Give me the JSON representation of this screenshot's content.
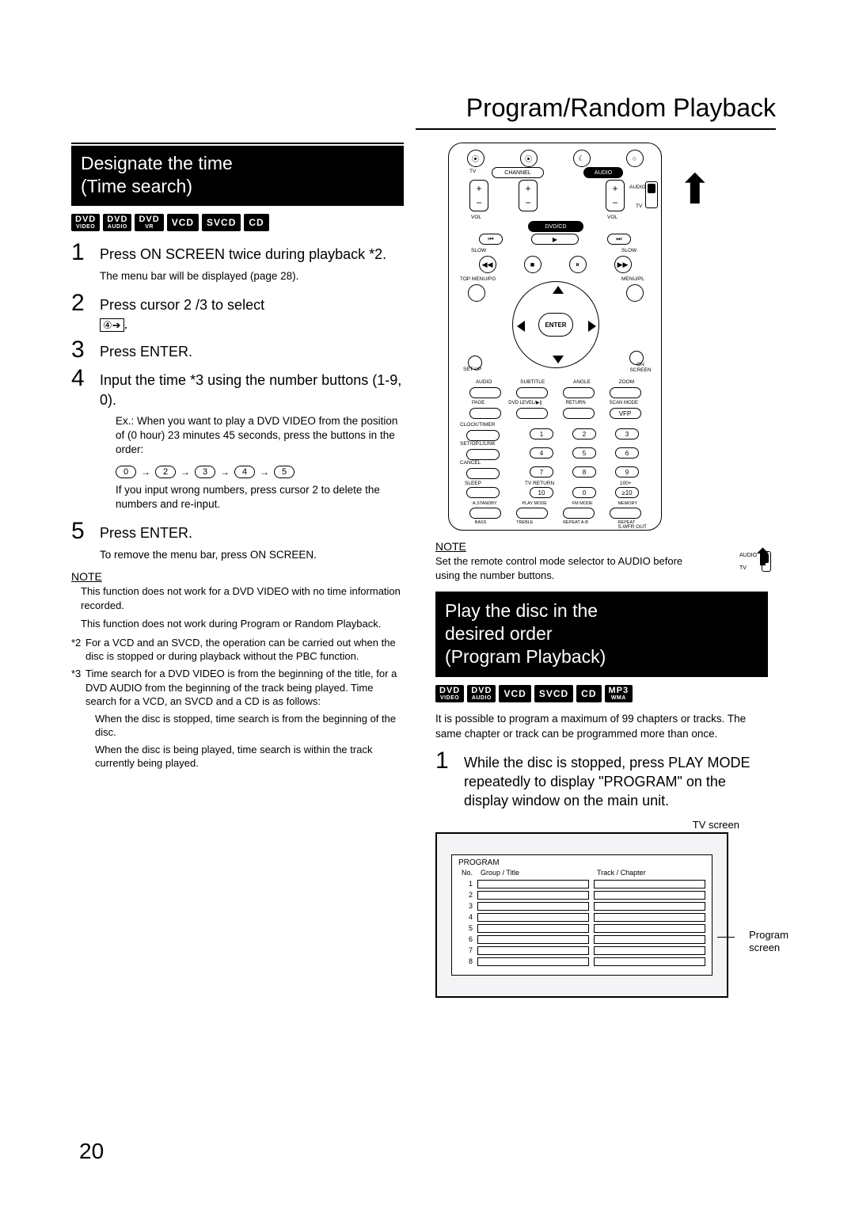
{
  "page": {
    "title": "Program/Random Playback",
    "number": "20"
  },
  "left": {
    "section_title": "Designate the time\n(Time search)",
    "formats": [
      {
        "top": "DVD",
        "bot": "VIDEO"
      },
      {
        "top": "DVD",
        "bot": "AUDIO"
      },
      {
        "top": "DVD",
        "bot": "VR"
      },
      {
        "single": "VCD"
      },
      {
        "single": "SVCD"
      },
      {
        "single": "CD"
      }
    ],
    "steps": {
      "s1": {
        "num": "1",
        "body": "Press ON SCREEN twice during playback *2.",
        "sub": "The menu bar will be displayed (page 28)."
      },
      "s2": {
        "num": "2",
        "body": "Press cursor  2 /3  to select"
      },
      "s2_icon": "④➔",
      "s2_tail": ".",
      "s3": {
        "num": "3",
        "body": "Press ENTER."
      },
      "s4": {
        "num": "4",
        "body": "Input the time *3 using the number buttons (1-9, 0).",
        "ex": "Ex.:  When you want to play a DVD VIDEO from the position of (0 hour) 23 minutes 45 seconds, press the buttons in the order:",
        "seq": [
          "0",
          "2",
          "3",
          "4",
          "5"
        ],
        "after": "If you input wrong numbers, press cursor 2 to delete the numbers and re-input."
      },
      "s5": {
        "num": "5",
        "body": "Press ENTER.",
        "sub": "To remove the menu bar, press ON SCREEN."
      }
    },
    "note_hdr": "NOTE",
    "notes": [
      "This function does not work for a DVD VIDEO with no time information recorded.",
      "This function does not work during Program or Random Playback."
    ],
    "footnotes": [
      {
        "k": "*2",
        "b": "For a VCD and an SVCD, the operation can be carried out when the disc is stopped or during playback without the PBC function."
      },
      {
        "k": "*3",
        "b": "Time search for a DVD VIDEO is from the beginning of the title, for a DVD AUDIO from the beginning of the track being played. Time search for a VCD, an SVCD and a CD is as follows:"
      }
    ],
    "footnote_subs": [
      "When the disc is stopped, time search is from the beginning of the disc.",
      "When the disc is being played, time search is within the track currently being played."
    ]
  },
  "right": {
    "remote": {
      "top_icons": [
        "⦿",
        "⦿",
        "☾",
        "○"
      ],
      "channel_lbl": "CHANNEL",
      "audio_lbl": "AUDIO",
      "vol_lbl": "VOL",
      "audio_side": "AUDIO",
      "tv_side": "TV",
      "dvdcd_lbl": "DVD/CD",
      "slow_lbl_l": "SLOW",
      "slow_lbl_r": "SLOW",
      "trans_btns": [
        "⏮",
        "▶",
        "⏭"
      ],
      "trans_btns2": [
        "◀◀",
        "⏸",
        "▶▶"
      ],
      "stop": "■",
      "topmenu": "TOP MENU/PG",
      "menupl": "MENU/PL",
      "enter": "ENTER",
      "setup": "SET UP",
      "onscreen": "ON SCREEN",
      "row_lbls1": [
        "AUDIO",
        "SUBTITLE",
        "ANGLE",
        "ZOOM"
      ],
      "row_lbls2": [
        "PAGE",
        "DVD LEVEL/▶||",
        "RETURN",
        "SCAN MODE"
      ],
      "vfp": "VFP",
      "clocktimer": "CLOCK/TIMER",
      "setopllink": "SET/OP.L/LINK",
      "cancel": "CANCEL",
      "sleep": "SLEEP",
      "tvreturn": "TV RETURN",
      "h100": "100+",
      "pad": [
        "1",
        "2",
        "3",
        "4",
        "5",
        "6",
        "7",
        "8",
        "9",
        "10",
        "0",
        "≥10"
      ],
      "bottom_row": [
        "A.STANDBY",
        "PLAY MODE",
        "FM MODE",
        "MEMORY"
      ],
      "bass": "BASS",
      "treble": "TREBLE",
      "repeat": "REPEAT A-B",
      "repeat2": "REPEAT",
      "swfr": "S.WFR OUT"
    },
    "note_hdr": "NOTE",
    "note_body": "Set the remote control mode selector to AUDIO before using the number buttons.",
    "side_audio": "AUDIO",
    "side_tv": "TV",
    "section_title": "Play the disc in the\ndesired order\n(Program Playback)",
    "formats": [
      {
        "top": "DVD",
        "bot": "VIDEO"
      },
      {
        "top": "DVD",
        "bot": "AUDIO"
      },
      {
        "single": "VCD"
      },
      {
        "single": "SVCD"
      },
      {
        "single": "CD"
      },
      {
        "top": "MP3",
        "bot": "WMA"
      }
    ],
    "intro": "It is possible to program a maximum of 99 chapters or tracks. The same chapter or track can be programmed more than once.",
    "step1": {
      "num": "1",
      "body": "While the disc is stopped, press PLAY MODE repeatedly to display \"PROGRAM\" on the display window on the main unit."
    },
    "tv": {
      "tvscreen": "TV screen",
      "prog_title": "PROGRAM",
      "hdr_no": "No.",
      "hdr_gt": "Group / Title",
      "hdr_tc": "Track / Chapter",
      "rows": [
        "1",
        "2",
        "3",
        "4",
        "5",
        "6",
        "7",
        "8"
      ],
      "side": "Program\nscreen"
    }
  }
}
